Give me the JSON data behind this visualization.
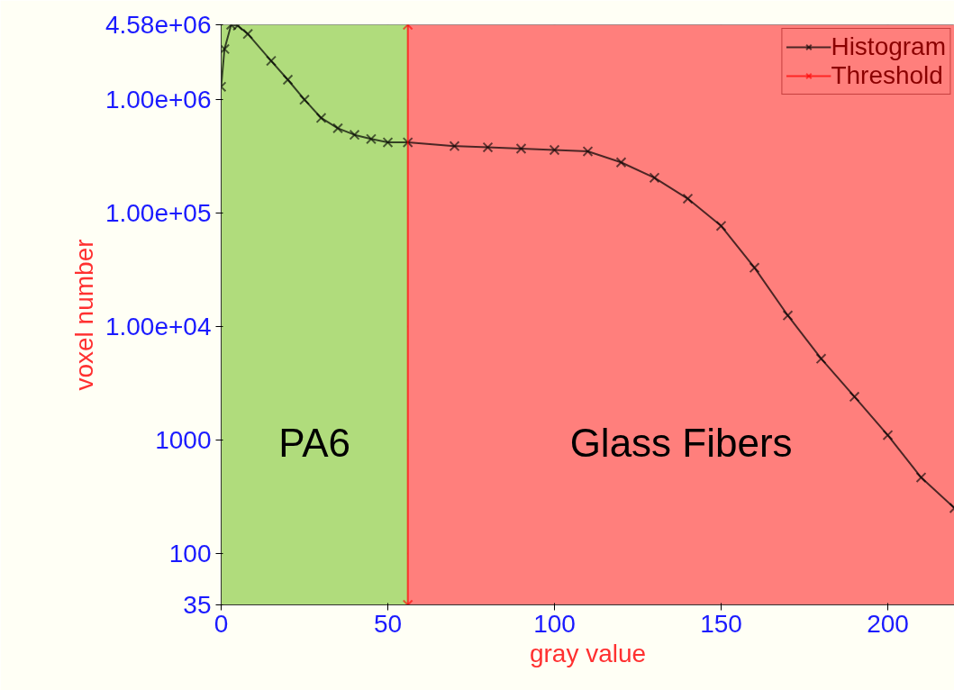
{
  "chart_data": {
    "type": "line",
    "xlabel": "gray value",
    "ylabel": "voxel number",
    "log": "y",
    "grid": true,
    "legend": "top right",
    "marker": "cross",
    "xlim": [
      0,
      220
    ],
    "xticks": [
      0,
      50,
      100,
      150,
      200
    ],
    "ylim": [
      35,
      4580000
    ],
    "yticks": [
      35,
      100,
      1000,
      {
        "value": 10000,
        "label": "1.00e+04"
      },
      {
        "value": 100000,
        "label": "1.00e+05"
      },
      {
        "value": 1000000,
        "label": "1.00e+06"
      },
      {
        "value": 4580000,
        "label": "4.58e+06"
      }
    ],
    "series": [
      {
        "name": "Histogram",
        "color": "#000000",
        "x": [
          0,
          1,
          3,
          5,
          8,
          15,
          20,
          25,
          30,
          35,
          40,
          45,
          50,
          56,
          70,
          80,
          90,
          100,
          110,
          120,
          130,
          140,
          150,
          160,
          170,
          180,
          190,
          200,
          210,
          220
        ],
        "values": [
          1300000,
          2800000,
          4580000,
          4500000,
          3800000,
          2200000,
          1500000,
          1000000,
          690000,
          560000,
          490000,
          450000,
          420000,
          420000,
          390000,
          380000,
          370000,
          360000,
          350000,
          280000,
          205000,
          134000,
          77000,
          33000,
          12500,
          5200,
          2400,
          1100,
          465,
          250
        ]
      },
      {
        "name": "Threshold",
        "color": "#ff0000",
        "x": [
          56,
          56
        ],
        "values": [
          35,
          4580000
        ]
      }
    ],
    "bands": [
      {
        "axis": "x",
        "from": 0,
        "to": 56,
        "label": "PA6",
        "color": "#b0dc7c"
      },
      {
        "axis": "x",
        "from": 56,
        "to": 220,
        "label": "Glass Fibers",
        "color": "#ff7f7c"
      }
    ]
  }
}
